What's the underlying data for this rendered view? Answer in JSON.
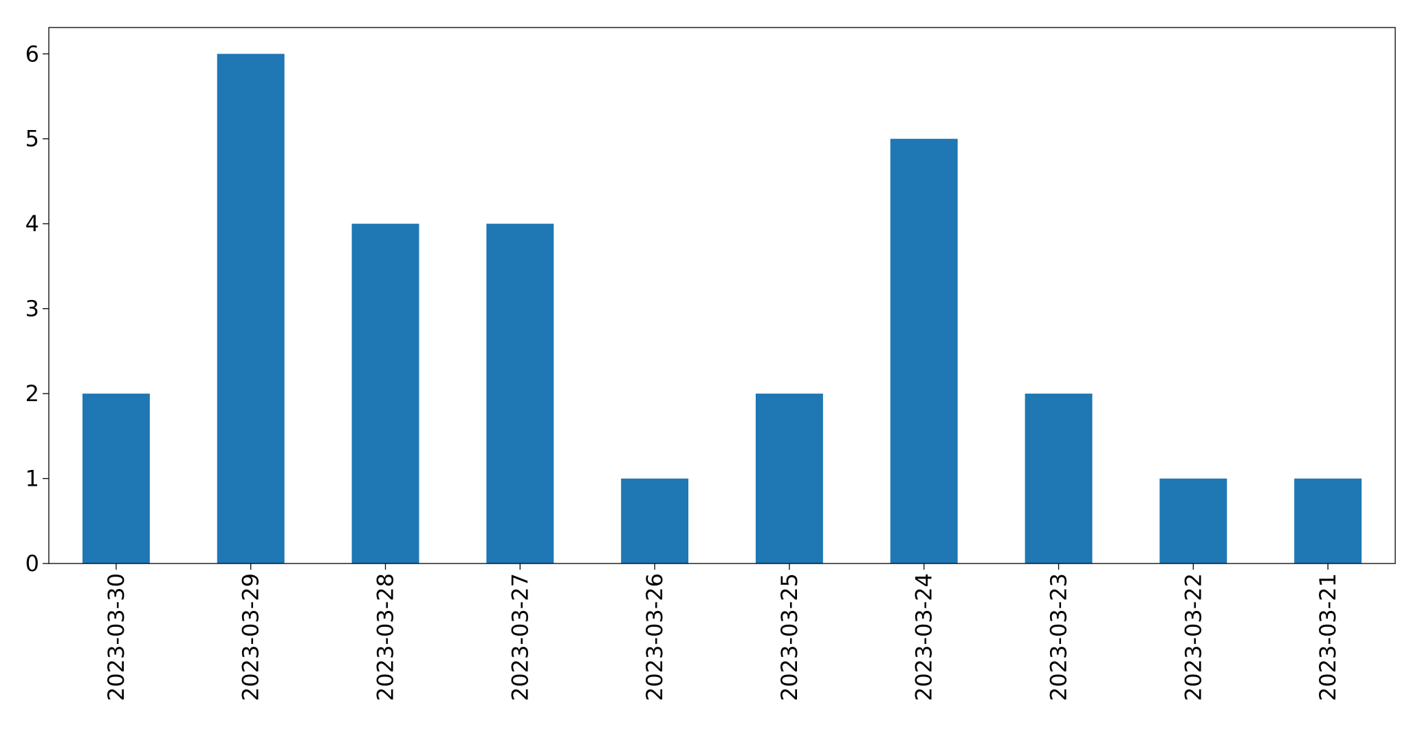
{
  "chart_data": {
    "type": "bar",
    "categories": [
      "2023-03-30",
      "2023-03-29",
      "2023-03-28",
      "2023-03-27",
      "2023-03-26",
      "2023-03-25",
      "2023-03-24",
      "2023-03-23",
      "2023-03-22",
      "2023-03-21"
    ],
    "values": [
      2,
      6,
      4,
      4,
      1,
      2,
      5,
      2,
      1,
      1
    ],
    "color": "#1f77b4",
    "ylim": [
      0,
      6.31
    ],
    "yticks": [
      0,
      1,
      2,
      3,
      4,
      5,
      6
    ],
    "grid": false
  }
}
